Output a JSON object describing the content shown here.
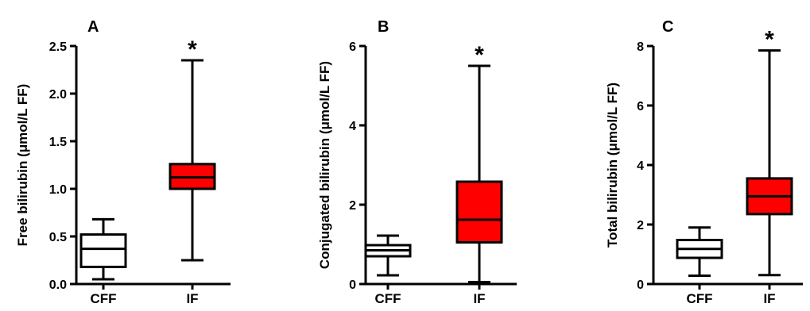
{
  "chart_data": [
    {
      "type": "box",
      "panel_label": "A",
      "ylabel": "Free bilirubin (μmol/L FF)",
      "ylim": [
        0,
        2.5
      ],
      "yticks": [
        "0.0",
        "0.5",
        "1.0",
        "1.5",
        "2.0",
        "2.5"
      ],
      "ytick_values": [
        0,
        0.5,
        1.0,
        1.5,
        2.0,
        2.5
      ],
      "categories": [
        "CFF",
        "IF"
      ],
      "boxes": [
        {
          "category": "CFF",
          "min": 0.05,
          "q1": 0.18,
          "median": 0.37,
          "q3": 0.52,
          "max": 0.68,
          "color": "#ffffff",
          "significant": false,
          "marker": ""
        },
        {
          "category": "IF",
          "min": 0.25,
          "q1": 1.0,
          "median": 1.12,
          "q3": 1.26,
          "max": 2.35,
          "color": "#ff0000",
          "significant": true,
          "marker": "*"
        }
      ]
    },
    {
      "type": "box",
      "panel_label": "B",
      "ylabel": "Conjugated bilirubin (μmol/L FF)",
      "ylim": [
        0,
        6
      ],
      "yticks": [
        "0",
        "2",
        "4",
        "6"
      ],
      "ytick_values": [
        0,
        2,
        4,
        6
      ],
      "categories": [
        "CFF",
        "IF"
      ],
      "boxes": [
        {
          "category": "CFF",
          "min": 0.22,
          "q1": 0.7,
          "median": 0.85,
          "q3": 0.98,
          "max": 1.22,
          "color": "#ffffff",
          "significant": false,
          "marker": ""
        },
        {
          "category": "IF",
          "min": 0.05,
          "q1": 1.05,
          "median": 1.62,
          "q3": 2.58,
          "max": 5.5,
          "color": "#ff0000",
          "significant": true,
          "marker": "*"
        }
      ]
    },
    {
      "type": "box",
      "panel_label": "C",
      "ylabel": "Total bilirubin (μmol/L FF)",
      "ylim": [
        0,
        8
      ],
      "yticks": [
        "0",
        "2",
        "4",
        "6",
        "8"
      ],
      "ytick_values": [
        0,
        2,
        4,
        6,
        8
      ],
      "categories": [
        "CFF",
        "IF"
      ],
      "boxes": [
        {
          "category": "CFF",
          "min": 0.28,
          "q1": 0.88,
          "median": 1.18,
          "q3": 1.48,
          "max": 1.9,
          "color": "#ffffff",
          "significant": false,
          "marker": ""
        },
        {
          "category": "IF",
          "min": 0.3,
          "q1": 2.35,
          "median": 2.95,
          "q3": 3.55,
          "max": 7.85,
          "color": "#ff0000",
          "significant": true,
          "marker": "*"
        }
      ]
    }
  ]
}
